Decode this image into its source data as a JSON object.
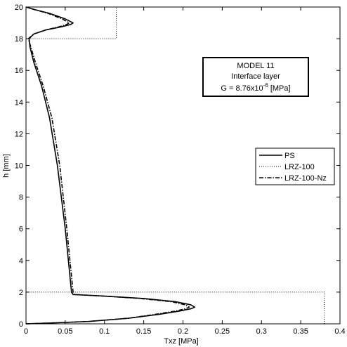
{
  "chart_data": {
    "type": "line",
    "xlabel": "Txz [MPa]",
    "ylabel": "h [mm]",
    "xlim": [
      0,
      0.4
    ],
    "ylim": [
      0,
      20
    ],
    "xticks": [
      0,
      0.05,
      0.1,
      0.15,
      0.2,
      0.25,
      0.3,
      0.35,
      0.4
    ],
    "xtick_labels": [
      "0",
      "0.05",
      "0.1",
      "0.15",
      "0.2",
      "0.25",
      "0.3",
      "0.35",
      "0.4"
    ],
    "yticks": [
      0,
      2,
      4,
      6,
      8,
      10,
      12,
      14,
      16,
      18,
      20
    ],
    "ytick_labels": [
      "0",
      "2",
      "4",
      "6",
      "8",
      "10",
      "12",
      "14",
      "16",
      "18",
      "20"
    ],
    "grid": false,
    "annotation": {
      "line1": "MODEL 11",
      "line2": "Interface layer",
      "line3_prefix": "G = 8.76x10",
      "line3_exp": "-6",
      "line3_suffix": "  [MPa]"
    },
    "legend_position": "right",
    "series": [
      {
        "name": "PS",
        "style": "solid",
        "x": [
          0,
          0.03,
          0.08,
          0.13,
          0.17,
          0.195,
          0.21,
          0.215,
          0.21,
          0.19,
          0.15,
          0.1,
          0.06,
          0.058,
          0.05,
          0.04,
          0.03,
          0.02,
          0.01,
          0.005,
          0.004,
          0.01,
          0.025,
          0.045,
          0.057,
          0.06,
          0.05,
          0.03,
          0.01,
          0
        ],
        "y": [
          0,
          0.05,
          0.15,
          0.35,
          0.6,
          0.8,
          0.95,
          1.05,
          1.2,
          1.4,
          1.6,
          1.75,
          1.85,
          2.0,
          6.0,
          10.0,
          13.0,
          15.0,
          16.5,
          17.5,
          18.0,
          18.3,
          18.55,
          18.75,
          18.9,
          19.0,
          19.25,
          19.6,
          19.85,
          20.0
        ]
      },
      {
        "name": "LRZ-100",
        "style": "dotted",
        "x": [
          0.38,
          0.38,
          0,
          0,
          0.115,
          0.115
        ],
        "y": [
          0,
          2.0,
          2.0,
          18.0,
          18.0,
          20.0
        ]
      },
      {
        "name": "LRZ-100-Nz",
        "style": "dashdot",
        "x": [
          0,
          0.03,
          0.08,
          0.13,
          0.165,
          0.19,
          0.203,
          0.208,
          0.203,
          0.185,
          0.145,
          0.1,
          0.062,
          0.06,
          0.052,
          0.043,
          0.033,
          0.022,
          0.012,
          0.006,
          0.003,
          0.01,
          0.025,
          0.042,
          0.052,
          0.055,
          0.046,
          0.028,
          0.01,
          0
        ],
        "y": [
          0,
          0.05,
          0.15,
          0.35,
          0.6,
          0.8,
          0.95,
          1.05,
          1.2,
          1.4,
          1.6,
          1.75,
          1.85,
          2.0,
          6.0,
          10.0,
          13.0,
          15.0,
          16.5,
          17.5,
          18.0,
          18.3,
          18.55,
          18.75,
          18.9,
          19.0,
          19.25,
          19.6,
          19.85,
          20.0
        ]
      }
    ]
  }
}
